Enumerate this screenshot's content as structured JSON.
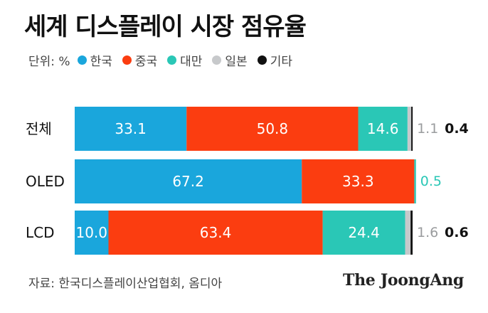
{
  "title": "세계 디스플레이 시장 점유율",
  "unit_label": "단위: %",
  "source": "자료: 한국디스플레이산업협회, 옴디아",
  "brand": "The JoongAng",
  "chart_data": {
    "type": "bar",
    "orientation": "horizontal",
    "stacked": true,
    "categories": [
      "전체",
      "OLED",
      "LCD"
    ],
    "series": [
      {
        "name": "한국",
        "color": "#1aa6dc",
        "values": [
          33.1,
          67.2,
          10.0
        ],
        "labels": [
          "33.1",
          "67.2",
          "10.0"
        ]
      },
      {
        "name": "중국",
        "color": "#fb3d10",
        "values": [
          50.8,
          33.3,
          63.4
        ],
        "labels": [
          "50.8",
          "33.3",
          "63.4"
        ]
      },
      {
        "name": "대만",
        "color": "#2ac7b6",
        "values": [
          14.6,
          0.5,
          24.4
        ],
        "labels": [
          "14.6",
          "0.5",
          "24.4"
        ]
      },
      {
        "name": "일본",
        "color": "#c7c9cb",
        "values": [
          1.1,
          0,
          1.6
        ],
        "labels": [
          "1.1",
          "",
          "1.6"
        ]
      },
      {
        "name": "기타",
        "color": "#111111",
        "values": [
          0.4,
          0,
          0.6
        ],
        "labels": [
          "0.4",
          "",
          "0.6"
        ]
      }
    ],
    "xlim": [
      0,
      100
    ],
    "legend_position": "top-left",
    "grid": false
  }
}
